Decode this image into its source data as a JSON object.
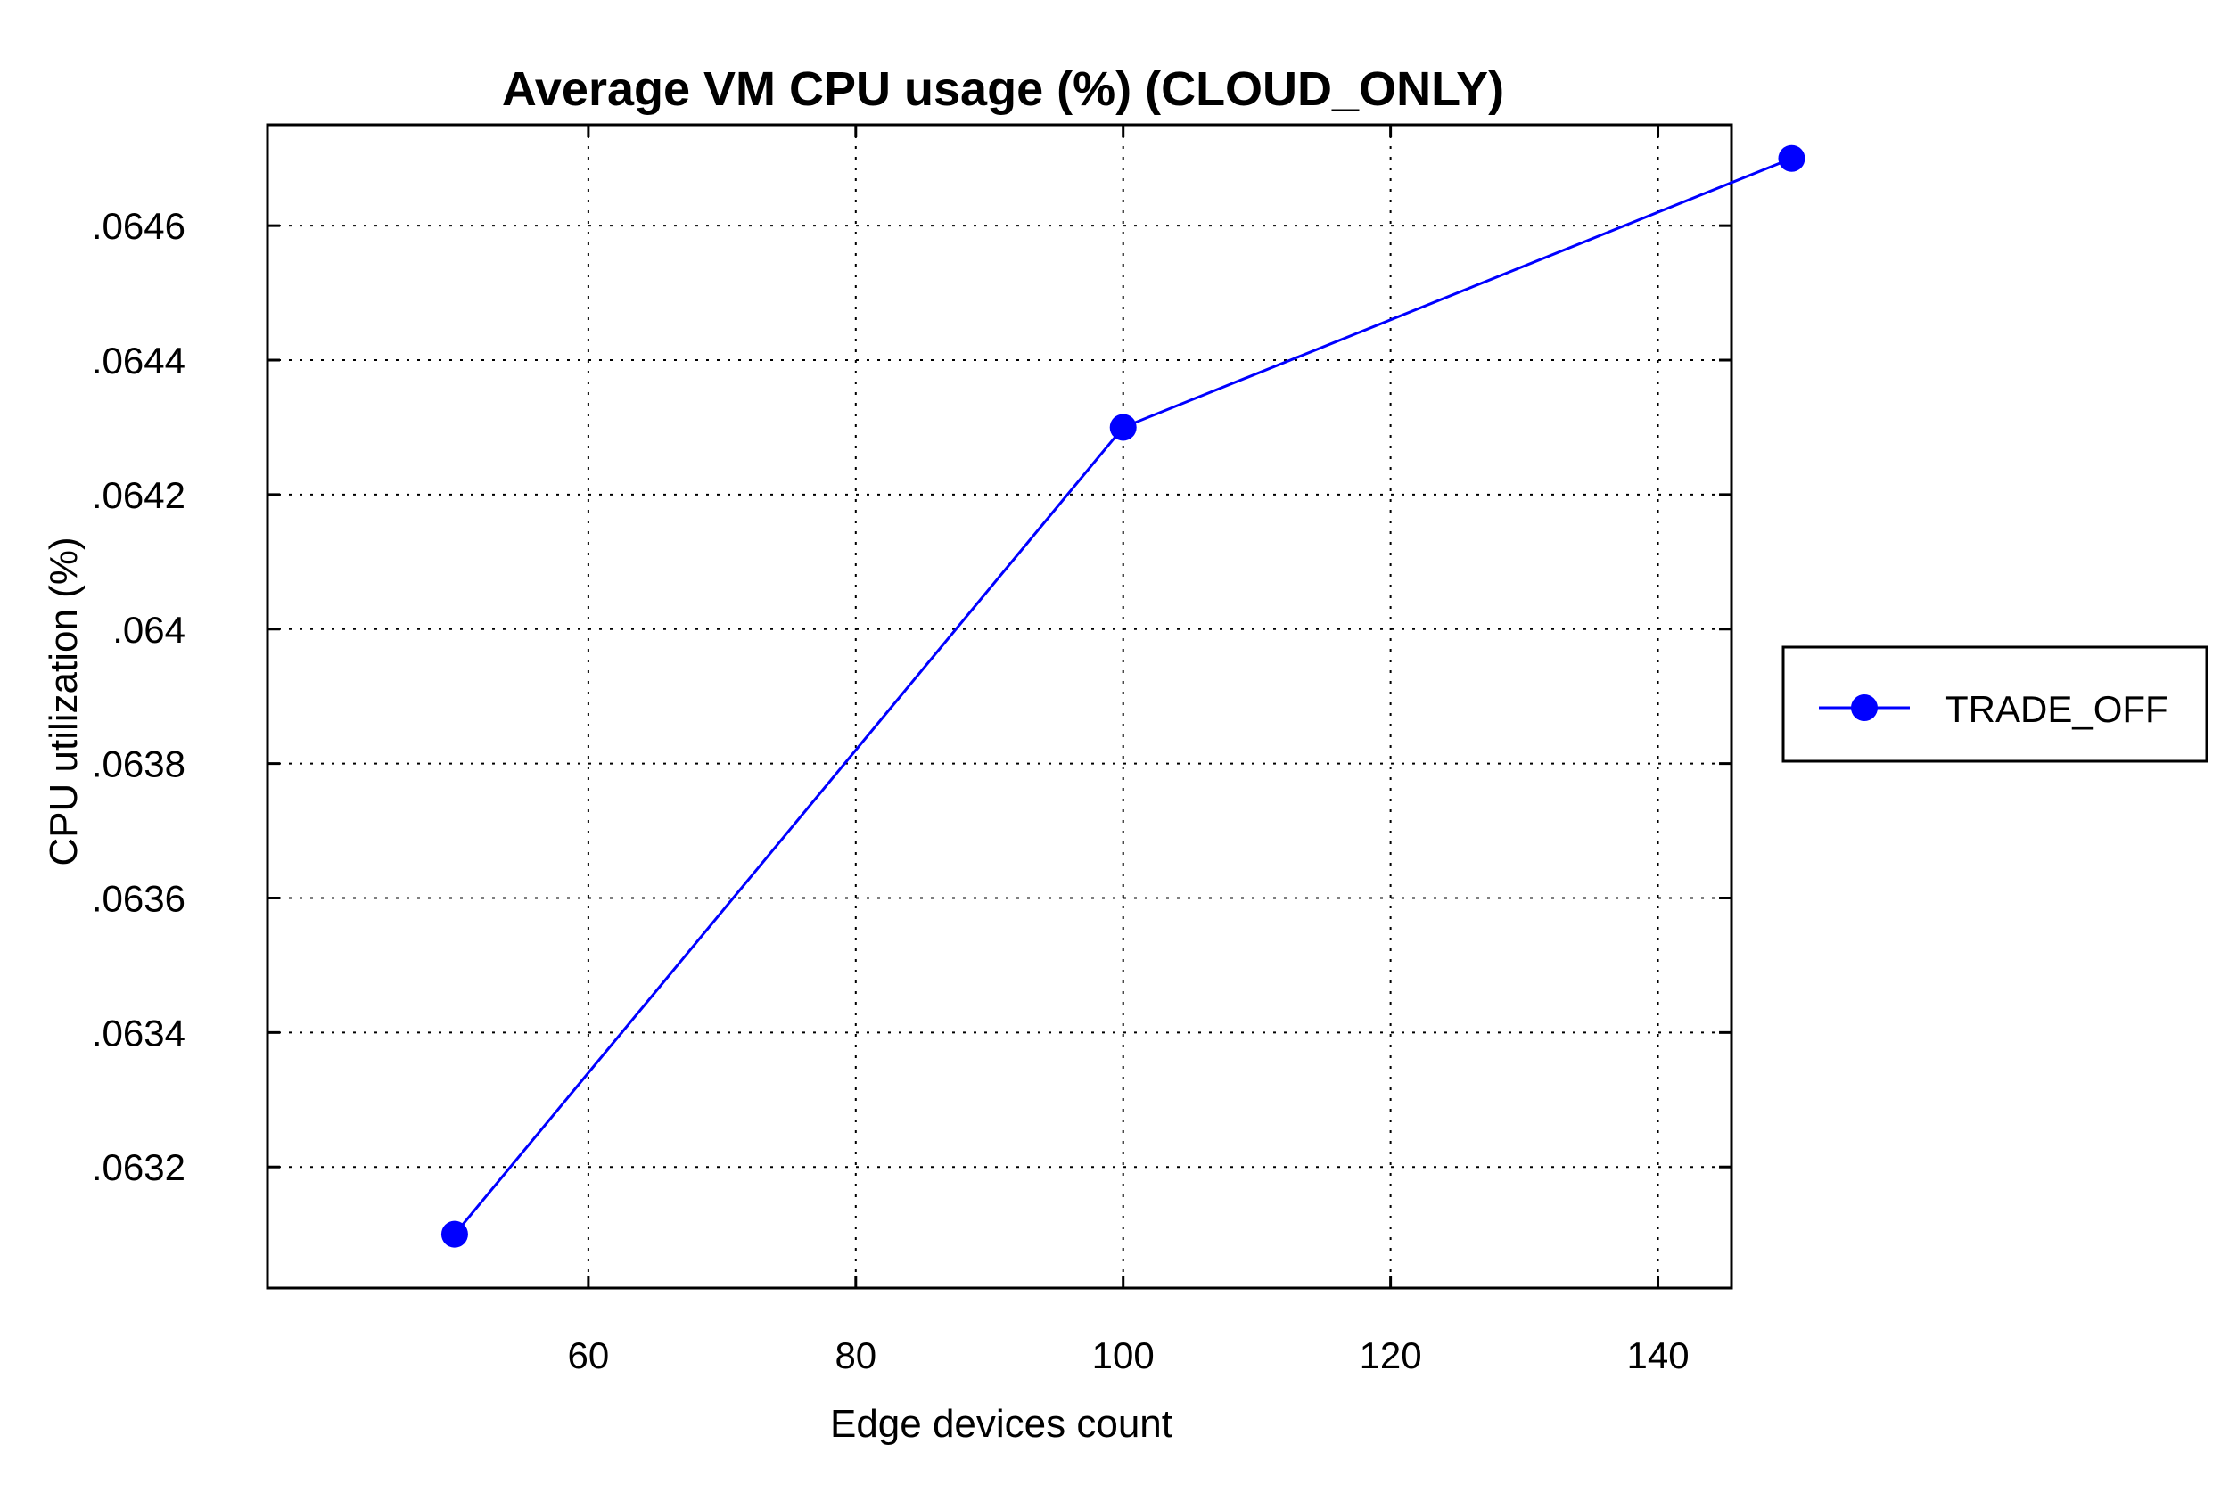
{
  "chart_data": {
    "type": "line",
    "title": "Average VM CPU usage (%) (CLOUD_ONLY)",
    "xlabel": "Edge devices count",
    "ylabel": "CPU utilization (%)",
    "xlim": [
      36,
      145.5
    ],
    "ylim": [
      0.06302,
      0.06475
    ],
    "x_ticks": [
      60,
      80,
      100,
      120,
      140
    ],
    "x_tick_labels": [
      "60",
      "80",
      "100",
      "120",
      "140"
    ],
    "y_ticks": [
      0.0632,
      0.0634,
      0.0636,
      0.0638,
      0.064,
      0.0642,
      0.0644,
      0.0646
    ],
    "y_tick_labels": [
      ".0632",
      ".0634",
      ".0636",
      ".0638",
      ".064",
      ".0642",
      ".0644",
      ".0646"
    ],
    "grid": true,
    "legend_position": "right",
    "series": [
      {
        "name": "TRADE_OFF",
        "color": "#0000ff",
        "marker": "circle",
        "x": [
          50,
          100,
          150
        ],
        "y": [
          0.0631,
          0.0643,
          0.0647
        ]
      }
    ]
  }
}
